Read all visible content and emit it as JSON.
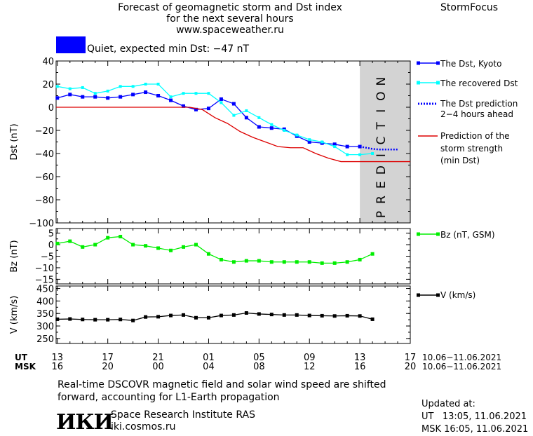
{
  "header": {
    "title_lines": [
      "Forecast of geomagnetic storm and Dst index",
      "for the next several hours",
      "www.spaceweather.ru"
    ],
    "brand": "StormFocus"
  },
  "status": {
    "text": "Quiet, expected min Dst: −47 nT",
    "color": "#0000ff"
  },
  "colors": {
    "dst_kyoto": "#0000ff",
    "dst_recovered": "#00ffff",
    "dst_prediction": "#0000ff",
    "storm_strength": "#dd0000",
    "bz": "#00ee00",
    "speed": "#000000",
    "prediction_zone": "#d3d3d3"
  },
  "time_axis": {
    "ut_label": "UT",
    "msk_label": "MSK",
    "ut_ticks": [
      "13",
      "17",
      "21",
      "01",
      "05",
      "09",
      "13",
      "17"
    ],
    "msk_ticks": [
      "16",
      "20",
      "00",
      "04",
      "08",
      "12",
      "16",
      "20"
    ],
    "ut_range": "10.06−11.06.2021",
    "msk_range": "10.06−11.06.2021"
  },
  "footer": {
    "note_lines": [
      "Real-time DSCOVR magnetic field and solar wind speed are shifted",
      "forward, accounting for L1-Earth propagation"
    ],
    "logo": "ИКИ",
    "institute": "Space Research Institute RAS",
    "url": "iki.cosmos.ru",
    "updated_label": "Updated at:",
    "updated_ut": "UT   13:05, 11.06.2021",
    "updated_msk": "MSK 16:05, 11.06.2021"
  },
  "chart_data": [
    {
      "type": "line",
      "ylabel": "Dst (nT)",
      "ylim": [
        -100,
        40
      ],
      "yticks": [
        40,
        20,
        0,
        -20,
        -40,
        -60,
        -80,
        -100
      ],
      "xlim_hours_ut": [
        12.9,
        41
      ],
      "prediction_zone_hours_ut": [
        37,
        41
      ],
      "prediction_zone_label": "PREDICTION",
      "series": [
        {
          "name": "The Dst, Kyoto",
          "key": "dst_kyoto",
          "marker": "square",
          "x": [
            13,
            14,
            15,
            16,
            17,
            18,
            19,
            20,
            21,
            22,
            23,
            24,
            25,
            26,
            27,
            28,
            29,
            30,
            31,
            32,
            33,
            34,
            35,
            36,
            37
          ],
          "values": [
            8,
            11,
            9,
            9,
            8,
            9,
            11,
            13,
            10,
            6,
            1,
            -2,
            -1,
            7,
            3,
            -9,
            -17,
            -18,
            -19,
            -25,
            -30,
            -31,
            -32,
            -34,
            -34
          ]
        },
        {
          "name": "The recovered Dst",
          "key": "dst_recovered",
          "marker": "square-small",
          "x": [
            13,
            14,
            15,
            16,
            17,
            18,
            19,
            20,
            21,
            22,
            23,
            24,
            25,
            26,
            27,
            28,
            29,
            30,
            31,
            32,
            33,
            34,
            35,
            36,
            37,
            38
          ],
          "values": [
            18,
            16,
            17,
            12,
            14,
            18,
            18,
            20,
            20,
            9,
            12,
            12,
            12,
            4,
            -7,
            -3,
            -9,
            -15,
            -20,
            -24,
            -28,
            -30,
            -34,
            -41,
            -41,
            -40
          ]
        },
        {
          "name": "The Dst prediction\n2−4 hours ahead",
          "key": "dst_prediction",
          "marker": "none",
          "dashed": true,
          "x": [
            37,
            37.5,
            38,
            38.5,
            39,
            39.5,
            40
          ],
          "values": [
            -34,
            -35,
            -36,
            -36.5,
            -36.5,
            -36.5,
            -36.5
          ]
        },
        {
          "name": "Prediction of the\nstorm strength\n(min Dst)",
          "key": "storm_strength",
          "marker": "none",
          "x": [
            12.9,
            23.5,
            24.5,
            25.5,
            26.5,
            27.5,
            28.5,
            29.5,
            30.5,
            31.5,
            32.5,
            33.5,
            34.5,
            35.5,
            41
          ],
          "values": [
            0,
            0,
            -2,
            -9,
            -14,
            -21,
            -26,
            -30,
            -34,
            -35,
            -35,
            -40,
            -44,
            -47,
            -47
          ]
        }
      ]
    },
    {
      "type": "line",
      "ylabel": "Bz (nT)",
      "ylim": [
        -17,
        7
      ],
      "yticks": [
        5,
        0,
        -5,
        -10,
        -15
      ],
      "series": [
        {
          "name": "Bz (nT, GSM)",
          "key": "bz",
          "marker": "square",
          "x": [
            13,
            14,
            15,
            16,
            17,
            18,
            19,
            20,
            21,
            22,
            23,
            24,
            25,
            26,
            27,
            28,
            29,
            30,
            31,
            32,
            33,
            34,
            35,
            36,
            37,
            38
          ],
          "values": [
            0.5,
            1.5,
            -1,
            0,
            3,
            3.5,
            0,
            -0.5,
            -1.5,
            -2.5,
            -1,
            0,
            -4,
            -6.5,
            -7.5,
            -7,
            -7,
            -7.5,
            -7.5,
            -7.5,
            -7.5,
            -8,
            -8,
            -7.5,
            -6.5,
            -4
          ]
        }
      ]
    },
    {
      "type": "line",
      "ylabel": "V (km/s)",
      "ylim": [
        230,
        460
      ],
      "yticks": [
        450,
        400,
        350,
        300,
        250
      ],
      "series": [
        {
          "name": "V (km/s)",
          "key": "speed",
          "marker": "square",
          "x": [
            13,
            14,
            15,
            16,
            17,
            18,
            19,
            20,
            21,
            22,
            23,
            24,
            25,
            26,
            27,
            28,
            29,
            30,
            31,
            32,
            33,
            34,
            35,
            36,
            37,
            38
          ],
          "values": [
            327,
            328,
            326,
            325,
            325,
            326,
            322,
            336,
            337,
            342,
            344,
            333,
            333,
            342,
            344,
            352,
            348,
            346,
            344,
            344,
            342,
            341,
            340,
            341,
            340,
            327
          ]
        }
      ]
    }
  ]
}
